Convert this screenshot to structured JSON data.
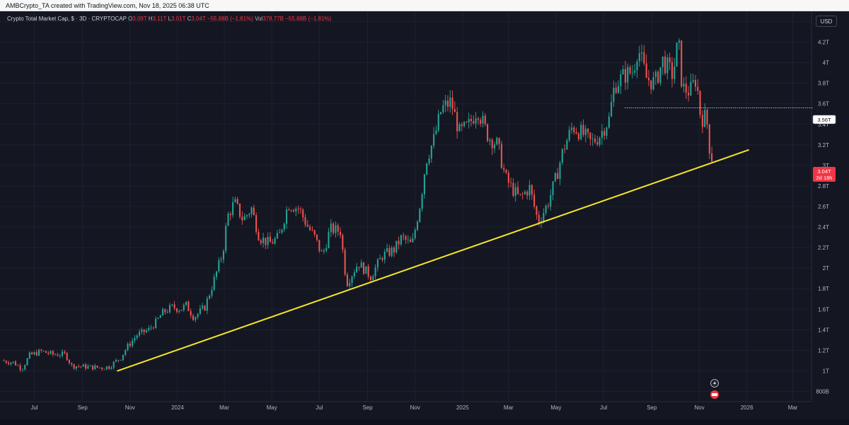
{
  "credit": {
    "text": "AMBCrypto_TA created with TradingView.com, Nov 18, 2025 06:38 UTC"
  },
  "header": {
    "symbol": "Crypto Total Market Cap, $ · 3D · CRYPTOCAP",
    "o_label": "O",
    "o_value": "3.09T",
    "h_label": "H",
    "h_value": "3.11T",
    "l_label": "L",
    "l_value": "3.01T",
    "c_label": "C",
    "c_value": "3.04T",
    "change": "−55.88B (−1.81%)",
    "vol_label": "Vol",
    "vol_value": "378.77B",
    "vol_change": "−55.88B (−1.81%)"
  },
  "currency": "USD",
  "colors": {
    "up": "#26a69a",
    "down": "#ef5350",
    "trendline": "#f5e52b",
    "price_tag": "#f23645",
    "background": "#141722"
  },
  "chart_data": {
    "type": "candlestick",
    "title": "Crypto Total Market Cap, $ · 3D · CRYPTOCAP",
    "ylim": [
      0.7,
      4.5
    ],
    "yaxis_unit": "T",
    "y_ticks": [
      {
        "v": 4.4,
        "label": "4.4T"
      },
      {
        "v": 4.2,
        "label": "4.2T"
      },
      {
        "v": 4.0,
        "label": "4T"
      },
      {
        "v": 3.8,
        "label": "3.8T"
      },
      {
        "v": 3.6,
        "label": "3.6T"
      },
      {
        "v": 3.4,
        "label": "3.4T"
      },
      {
        "v": 3.2,
        "label": "3.2T"
      },
      {
        "v": 3.0,
        "label": "3T"
      },
      {
        "v": 2.8,
        "label": "2.8T"
      },
      {
        "v": 2.6,
        "label": "2.6T"
      },
      {
        "v": 2.4,
        "label": "2.4T"
      },
      {
        "v": 2.2,
        "label": "2.2T"
      },
      {
        "v": 2.0,
        "label": "2T"
      },
      {
        "v": 1.8,
        "label": "1.8T"
      },
      {
        "v": 1.6,
        "label": "1.6T"
      },
      {
        "v": 1.4,
        "label": "1.4T"
      },
      {
        "v": 1.2,
        "label": "1.2T"
      },
      {
        "v": 1.0,
        "label": "1T"
      },
      {
        "v": 0.8,
        "label": "800B"
      }
    ],
    "x_ticks": [
      {
        "date": "2023-07-01",
        "label": "Jul"
      },
      {
        "date": "2023-09-01",
        "label": "Sep"
      },
      {
        "date": "2023-11-01",
        "label": "Nov"
      },
      {
        "date": "2024-01-01",
        "label": "2024"
      },
      {
        "date": "2024-03-01",
        "label": "Mar"
      },
      {
        "date": "2024-05-01",
        "label": "May"
      },
      {
        "date": "2024-07-01",
        "label": "Jul"
      },
      {
        "date": "2024-09-01",
        "label": "Sep"
      },
      {
        "date": "2024-11-01",
        "label": "Nov"
      },
      {
        "date": "2025-01-01",
        "label": "2025"
      },
      {
        "date": "2025-03-01",
        "label": "Mar"
      },
      {
        "date": "2025-05-01",
        "label": "May"
      },
      {
        "date": "2025-07-01",
        "label": "Jul"
      },
      {
        "date": "2025-09-01",
        "label": "Sep"
      },
      {
        "date": "2025-11-01",
        "label": "Nov"
      },
      {
        "date": "2026-01-01",
        "label": "2026"
      },
      {
        "date": "2026-03-01",
        "label": "Mar"
      }
    ],
    "x_range": [
      "2023-05-18",
      "2026-03-25"
    ],
    "close_path": [
      [
        "2023-05-20",
        1.1
      ],
      [
        "2023-06-05",
        1.08
      ],
      [
        "2023-06-15",
        1.02
      ],
      [
        "2023-06-25",
        1.15
      ],
      [
        "2023-07-10",
        1.19
      ],
      [
        "2023-07-25",
        1.16
      ],
      [
        "2023-08-10",
        1.16
      ],
      [
        "2023-08-18",
        1.05
      ],
      [
        "2023-09-05",
        1.04
      ],
      [
        "2023-09-25",
        1.03
      ],
      [
        "2023-10-05",
        1.04
      ],
      [
        "2023-10-20",
        1.13
      ],
      [
        "2023-10-28",
        1.23
      ],
      [
        "2023-11-10",
        1.35
      ],
      [
        "2023-11-25",
        1.4
      ],
      [
        "2023-12-05",
        1.48
      ],
      [
        "2023-12-12",
        1.56
      ],
      [
        "2023-12-25",
        1.62
      ],
      [
        "2024-01-05",
        1.6
      ],
      [
        "2024-01-12",
        1.64
      ],
      [
        "2024-01-22",
        1.52
      ],
      [
        "2024-02-05",
        1.62
      ],
      [
        "2024-02-15",
        1.84
      ],
      [
        "2024-02-28",
        2.15
      ],
      [
        "2024-03-05",
        2.5
      ],
      [
        "2024-03-14",
        2.64
      ],
      [
        "2024-03-25",
        2.47
      ],
      [
        "2024-04-05",
        2.58
      ],
      [
        "2024-04-15",
        2.3
      ],
      [
        "2024-04-28",
        2.24
      ],
      [
        "2024-05-10",
        2.3
      ],
      [
        "2024-05-22",
        2.62
      ],
      [
        "2024-06-05",
        2.58
      ],
      [
        "2024-06-15",
        2.42
      ],
      [
        "2024-06-25",
        2.3
      ],
      [
        "2024-07-05",
        2.12
      ],
      [
        "2024-07-15",
        2.38
      ],
      [
        "2024-07-28",
        2.36
      ],
      [
        "2024-08-05",
        1.85
      ],
      [
        "2024-08-20",
        2.05
      ],
      [
        "2024-09-05",
        1.92
      ],
      [
        "2024-09-20",
        2.12
      ],
      [
        "2024-10-05",
        2.18
      ],
      [
        "2024-10-15",
        2.3
      ],
      [
        "2024-10-28",
        2.22
      ],
      [
        "2024-11-08",
        2.65
      ],
      [
        "2024-11-15",
        3.05
      ],
      [
        "2024-11-25",
        3.25
      ],
      [
        "2024-12-05",
        3.55
      ],
      [
        "2024-12-17",
        3.62
      ],
      [
        "2024-12-28",
        3.32
      ],
      [
        "2025-01-08",
        3.38
      ],
      [
        "2025-01-20",
        3.55
      ],
      [
        "2025-02-03",
        3.28
      ],
      [
        "2025-02-15",
        3.2
      ],
      [
        "2025-02-25",
        2.88
      ],
      [
        "2025-03-05",
        2.78
      ],
      [
        "2025-03-15",
        2.68
      ],
      [
        "2025-03-28",
        2.78
      ],
      [
        "2025-04-08",
        2.45
      ],
      [
        "2025-04-20",
        2.62
      ],
      [
        "2025-05-01",
        2.88
      ],
      [
        "2025-05-10",
        3.15
      ],
      [
        "2025-05-22",
        3.38
      ],
      [
        "2025-06-05",
        3.3
      ],
      [
        "2025-06-15",
        3.22
      ],
      [
        "2025-06-25",
        3.28
      ],
      [
        "2025-07-08",
        3.45
      ],
      [
        "2025-07-15",
        3.78
      ],
      [
        "2025-07-28",
        3.88
      ],
      [
        "2025-08-08",
        3.92
      ],
      [
        "2025-08-14",
        4.15
      ],
      [
        "2025-08-25",
        3.85
      ],
      [
        "2025-09-05",
        3.8
      ],
      [
        "2025-09-15",
        4.02
      ],
      [
        "2025-09-28",
        3.88
      ],
      [
        "2025-10-05",
        4.22
      ],
      [
        "2025-10-10",
        3.75
      ],
      [
        "2025-10-20",
        3.72
      ],
      [
        "2025-10-28",
        3.85
      ],
      [
        "2025-11-03",
        3.45
      ],
      [
        "2025-11-10",
        3.48
      ],
      [
        "2025-11-14",
        3.18
      ],
      [
        "2025-11-18",
        3.04
      ]
    ],
    "trendline": {
      "start": {
        "date": "2023-10-16",
        "value": 1.0
      },
      "end": {
        "date": "2026-01-03",
        "value": 3.15
      }
    },
    "price_line": {
      "value": 3.56,
      "label": "3.56T",
      "from_date": "2025-07-28"
    },
    "last_price": {
      "value": 3.04,
      "label": "3.04T",
      "countdown": "2d 18h"
    }
  }
}
